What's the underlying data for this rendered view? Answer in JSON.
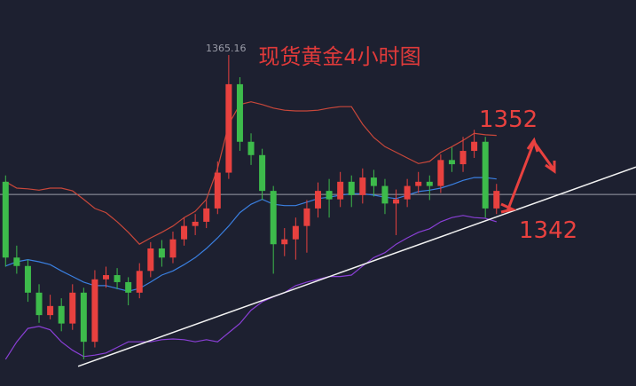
{
  "chart_data": {
    "type": "candlestick",
    "title": "现货黄金4小时图",
    "ylim": [
      1318,
      1373
    ],
    "xlim": [
      -0.5,
      56.5
    ],
    "colors": {
      "up": "#e8413f",
      "down": "#3dbb4b"
    },
    "ohlc": [
      [
        1347.1,
        1348.0,
        1335.0,
        1336.3
      ],
      [
        1336.3,
        1338.0,
        1334.0,
        1335.1
      ],
      [
        1335.1,
        1336.0,
        1330.0,
        1331.3
      ],
      [
        1331.3,
        1332.5,
        1327.0,
        1328.1
      ],
      [
        1328.1,
        1331.0,
        1327.5,
        1329.4
      ],
      [
        1329.4,
        1330.5,
        1325.8,
        1326.9
      ],
      [
        1326.9,
        1332.5,
        1326.0,
        1331.3
      ],
      [
        1331.3,
        1332.0,
        1321.8,
        1324.3
      ],
      [
        1324.3,
        1334.5,
        1323.5,
        1333.2
      ],
      [
        1333.2,
        1335.0,
        1332.0,
        1333.8
      ],
      [
        1333.8,
        1334.8,
        1331.8,
        1332.8
      ],
      [
        1332.8,
        1333.5,
        1329.5,
        1331.3
      ],
      [
        1331.3,
        1335.5,
        1330.5,
        1334.4
      ],
      [
        1334.4,
        1338.5,
        1333.5,
        1337.6
      ],
      [
        1337.6,
        1338.8,
        1335.0,
        1336.3
      ],
      [
        1336.3,
        1340.0,
        1335.5,
        1338.9
      ],
      [
        1338.9,
        1342.0,
        1338.0,
        1340.8
      ],
      [
        1340.8,
        1342.5,
        1339.5,
        1341.4
      ],
      [
        1341.4,
        1344.5,
        1340.5,
        1343.3
      ],
      [
        1343.3,
        1350.0,
        1342.5,
        1348.4
      ],
      [
        1348.4,
        1365.16,
        1347.5,
        1361.0
      ],
      [
        1361.0,
        1362.0,
        1351.5,
        1352.8
      ],
      [
        1352.8,
        1354.0,
        1349.5,
        1350.9
      ],
      [
        1350.9,
        1351.8,
        1344.5,
        1345.8
      ],
      [
        1345.8,
        1346.5,
        1334.0,
        1338.2
      ],
      [
        1338.2,
        1340.5,
        1336.5,
        1338.9
      ],
      [
        1338.9,
        1342.0,
        1336.0,
        1340.8
      ],
      [
        1340.8,
        1344.5,
        1337.0,
        1343.3
      ],
      [
        1343.3,
        1347.0,
        1342.0,
        1345.8
      ],
      [
        1345.8,
        1347.5,
        1342.0,
        1344.6
      ],
      [
        1344.6,
        1348.5,
        1343.5,
        1347.1
      ],
      [
        1347.1,
        1348.0,
        1343.5,
        1345.2
      ],
      [
        1345.2,
        1349.0,
        1344.0,
        1347.7
      ],
      [
        1347.7,
        1348.8,
        1345.0,
        1346.5
      ],
      [
        1346.5,
        1347.5,
        1342.5,
        1344.0
      ],
      [
        1344.0,
        1346.0,
        1339.5,
        1344.6
      ],
      [
        1344.6,
        1347.5,
        1343.5,
        1346.5
      ],
      [
        1346.5,
        1348.5,
        1345.5,
        1347.1
      ],
      [
        1347.1,
        1348.0,
        1344.5,
        1346.5
      ],
      [
        1346.5,
        1351.0,
        1345.5,
        1350.2
      ],
      [
        1350.2,
        1352.0,
        1348.5,
        1349.6
      ],
      [
        1349.6,
        1353.5,
        1348.5,
        1351.5
      ],
      [
        1351.5,
        1354.5,
        1350.5,
        1352.8
      ],
      [
        1352.8,
        1353.5,
        1342.0,
        1343.3
      ],
      [
        1343.3,
        1346.8,
        1342.5,
        1345.8
      ]
    ],
    "series": [
      {
        "color": "#c8473a",
        "values": [
          1347.1,
          1346.2,
          1346.1,
          1345.9,
          1346.2,
          1346.2,
          1345.8,
          1344.6,
          1343.3,
          1342.7,
          1341.4,
          1339.9,
          1338.2,
          1339.1,
          1339.9,
          1340.8,
          1342.0,
          1342.9,
          1344.6,
          1349.0,
          1355.3,
          1358.1,
          1358.5,
          1358.1,
          1357.6,
          1357.3,
          1357.2,
          1357.2,
          1357.3,
          1357.6,
          1357.8,
          1357.8,
          1355.3,
          1353.4,
          1352.1,
          1351.3,
          1350.5,
          1349.7,
          1350.0,
          1351.3,
          1352.1,
          1353.0,
          1354.0,
          1353.8,
          1353.7
        ]
      },
      {
        "color": "#3a7fe0",
        "values": [
          1335.1,
          1335.7,
          1336.0,
          1335.7,
          1335.3,
          1334.4,
          1333.6,
          1332.8,
          1332.3,
          1332.3,
          1331.9,
          1331.5,
          1331.9,
          1332.8,
          1333.8,
          1334.4,
          1335.3,
          1336.3,
          1337.6,
          1339.1,
          1340.8,
          1342.7,
          1343.9,
          1344.6,
          1343.9,
          1343.7,
          1343.7,
          1344.2,
          1344.7,
          1344.9,
          1345.2,
          1345.4,
          1345.4,
          1345.2,
          1344.9,
          1344.7,
          1345.2,
          1345.7,
          1345.9,
          1346.2,
          1346.7,
          1347.3,
          1347.7,
          1347.7,
          1347.5
        ]
      },
      {
        "color": "#8a3fd6",
        "values": [
          1321.8,
          1324.3,
          1326.2,
          1326.5,
          1326.0,
          1324.3,
          1323.1,
          1322.2,
          1322.4,
          1322.7,
          1323.5,
          1324.3,
          1324.3,
          1324.3,
          1324.6,
          1324.7,
          1324.6,
          1324.3,
          1324.6,
          1324.3,
          1325.6,
          1326.9,
          1328.8,
          1330.0,
          1330.7,
          1331.3,
          1332.3,
          1332.8,
          1333.2,
          1333.6,
          1333.6,
          1333.8,
          1335.1,
          1336.3,
          1337.0,
          1338.2,
          1339.1,
          1339.9,
          1340.4,
          1341.4,
          1342.0,
          1342.3,
          1342.0,
          1341.9,
          1341.4
        ]
      }
    ],
    "price_line": 1345.3,
    "trendline": {
      "x": [
        6.5,
        56.5
      ],
      "y": [
        1320.8,
        1349.2
      ]
    },
    "annotations": [
      "1352",
      "1342"
    ]
  }
}
